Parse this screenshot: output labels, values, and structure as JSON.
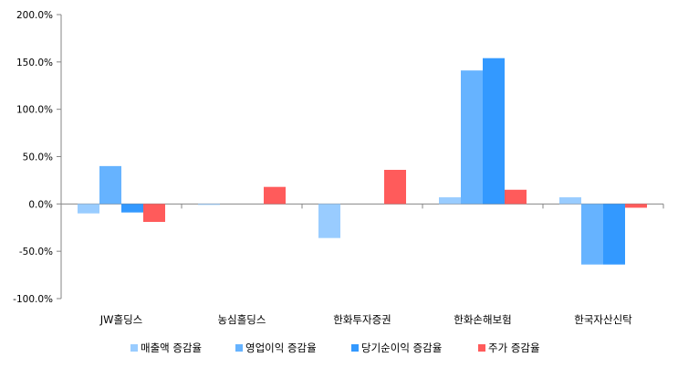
{
  "chart_data": {
    "type": "bar",
    "title": "",
    "xlabel": "",
    "ylabel": "",
    "ylim": [
      -100,
      200
    ],
    "yticks": [
      200,
      150,
      100,
      50,
      0,
      -50,
      -100
    ],
    "ytick_labels": [
      "200.0%",
      "150.0%",
      "100.0%",
      "50.0%",
      "0.0%",
      "-50.0%",
      "-100.0%"
    ],
    "categories": [
      "JW홀딩스",
      "농심홀딩스",
      "한화투자증권",
      "한화손해보험",
      "한국자산신탁"
    ],
    "series": [
      {
        "name": "매출액 증감율",
        "color": "#99ccff",
        "values": [
          -10,
          -1,
          -36,
          7,
          7
        ]
      },
      {
        "name": "영업이익 증감율",
        "color": "#66b3ff",
        "values": [
          40,
          0,
          0,
          141,
          -64
        ]
      },
      {
        "name": "당기순이익 증감율",
        "color": "#3399ff",
        "values": [
          -9,
          0,
          0,
          154,
          -64
        ]
      },
      {
        "name": "주가 증감율",
        "color": "#ff5b5b",
        "values": [
          -19,
          18,
          36,
          15,
          -4
        ]
      }
    ],
    "grid": false,
    "legend_position": "bottom"
  }
}
